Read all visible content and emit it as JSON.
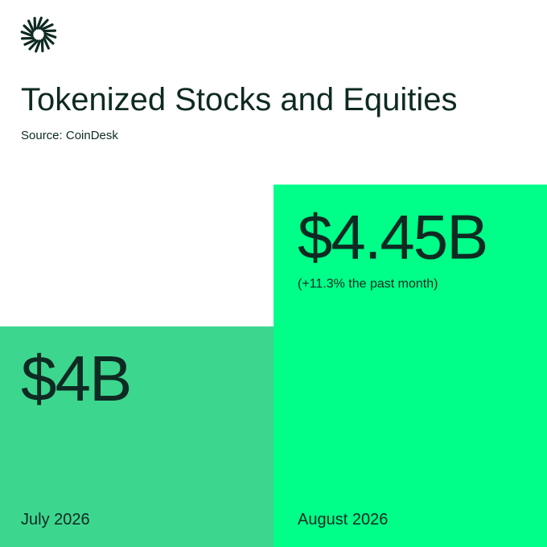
{
  "chart_data": {
    "type": "bar",
    "title": "Tokenized Stocks and Equities",
    "subtitle": "Source: CoinDesk",
    "categories": [
      "July 2026",
      "August 2026"
    ],
    "values": [
      4,
      4.45
    ],
    "value_labels": [
      "$4B",
      "$4.45B"
    ],
    "annotation": "(+11.3% the past month)",
    "colors": [
      "#3dd68f",
      "#00ff88"
    ],
    "ylim": [
      3.3,
      5
    ]
  }
}
